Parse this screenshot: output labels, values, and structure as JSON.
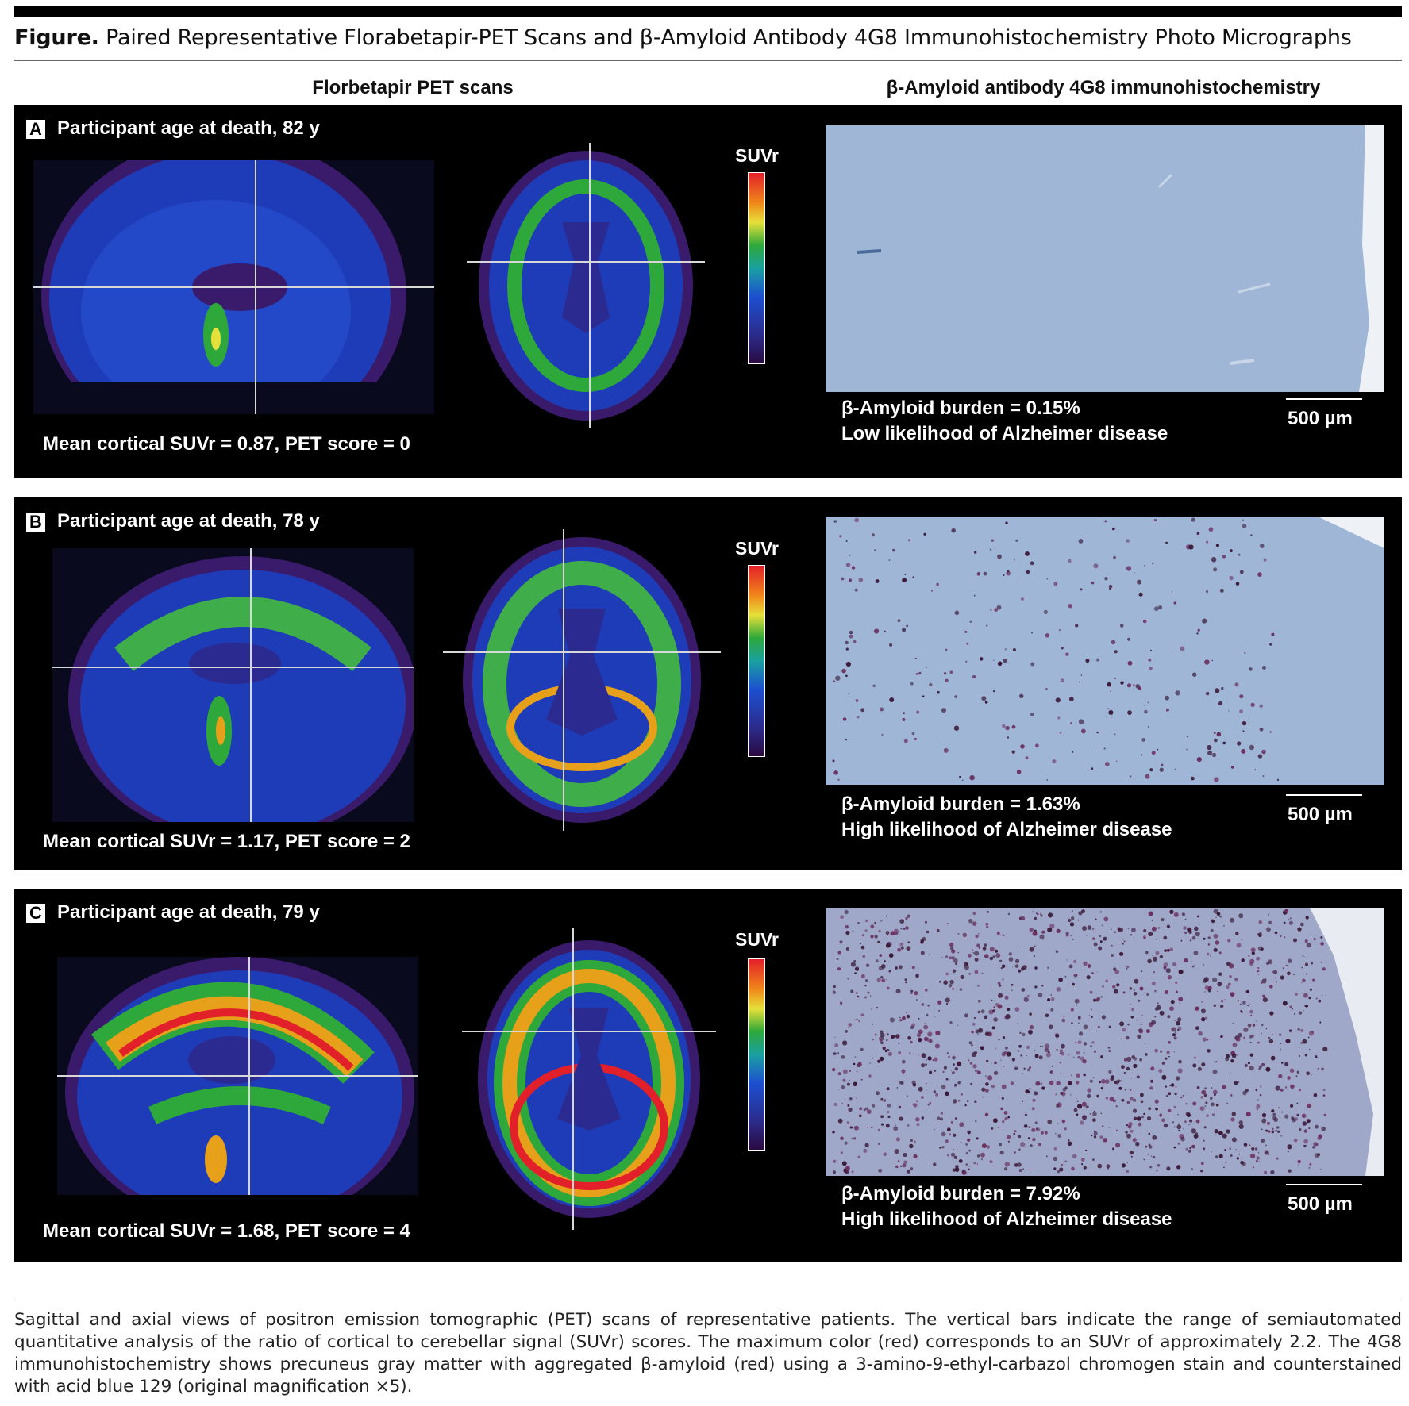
{
  "figure": {
    "label": "Figure.",
    "title": "Paired Representative Florabetapir-PET Scans and β-Amyloid Antibody 4G8 Immunohistochemistry Photo Micrographs"
  },
  "columns": {
    "left": "Florbetapir PET scans",
    "right": "β-Amyloid antibody 4G8 immunohistochemistry"
  },
  "panels": [
    {
      "letter": "A",
      "age": "Participant age at death, 82 y",
      "pet_stat": "Mean cortical SUVr = 0.87, PET score = 0",
      "suvr_label": "SUVr",
      "burden": "β-Amyloid burden = 0.15%",
      "likelihood": "Low likelihood of Alzheimer disease",
      "scale": "500 µm",
      "plaque_level": 0.0015
    },
    {
      "letter": "B",
      "age": "Participant age at death, 78 y",
      "pet_stat": "Mean cortical SUVr  = 1.17, PET score = 2",
      "suvr_label": "SUVr",
      "burden": "β-Amyloid burden = 1.63%",
      "likelihood": "High likelihood of Alzheimer disease",
      "scale": "500 µm",
      "plaque_level": 0.0163
    },
    {
      "letter": "C",
      "age": "Participant age at death, 79 y",
      "pet_stat": "Mean cortical SUVr  = 1.68, PET score = 4",
      "suvr_label": "SUVr",
      "burden": "β-Amyloid burden = 7.92%",
      "likelihood": "High likelihood of Alzheimer disease",
      "scale": "500 µm",
      "plaque_level": 0.0792
    }
  ],
  "caption": "Sagittal and axial views of positron emission tomographic (PET) scans of representative patients. The vertical bars indicate the range of semiautomated quantitative analysis of the ratio of cortical to cerebellar signal (SUVr) scores. The maximum color (red) corresponds to an SUVr of approximately 2.2. The 4G8 immunohistochemistry shows precuneus gray matter with aggregated β-amyloid (red) using a 3-amino-9-ethyl-carbazol chromogen stain and counterstained with acid blue 129 (original magnification ×5).",
  "colors": {
    "panel_bg": "#000000",
    "tissue_blue": "#9fb6d6",
    "plaque": "#3a1838"
  }
}
